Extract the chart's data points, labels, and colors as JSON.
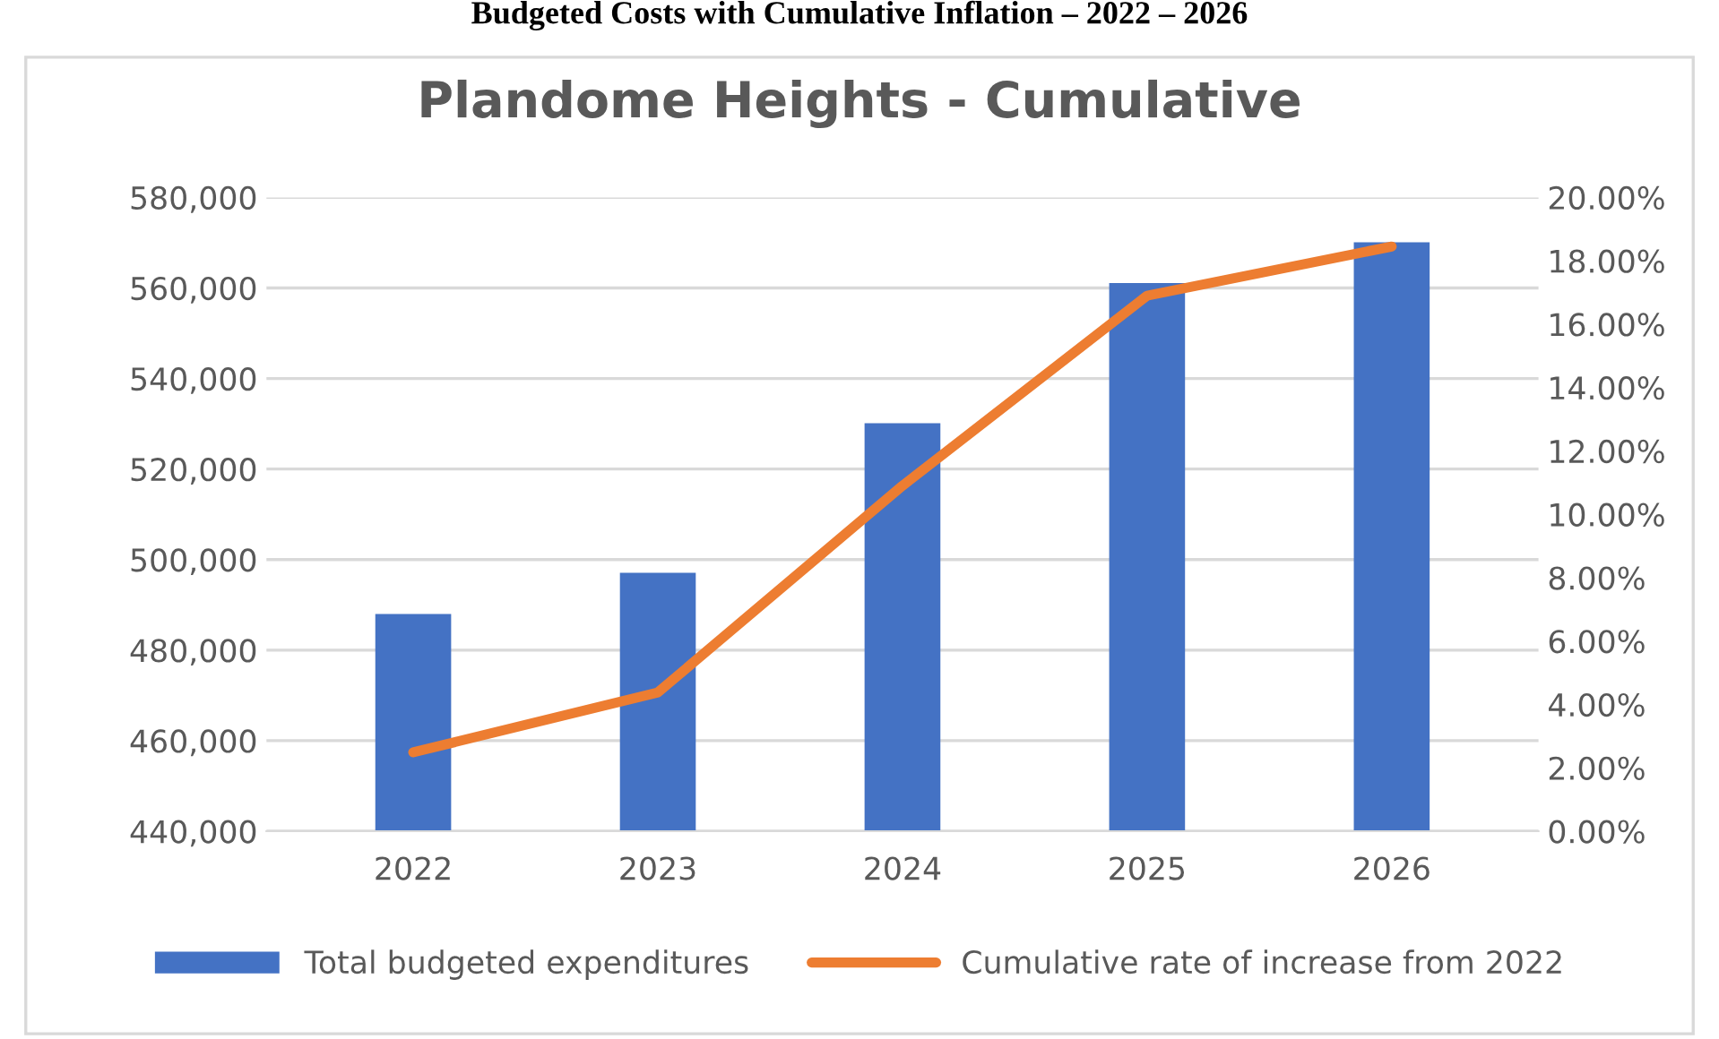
{
  "chart_data": {
    "type": "bar",
    "title": "Plandome Heights - Cumulative",
    "annotations": [
      "Budgeted Costs with Cumulative Inflation – 2022 – 2026"
    ],
    "categories": [
      "2022",
      "2023",
      "2024",
      "2025",
      "2026"
    ],
    "series": [
      {
        "name": "Total budgeted expenditures",
        "color": "#4472c4",
        "values": [
          488000,
          497100,
          530100,
          561100,
          570100
        ]
      },
      {
        "name": "Cumulative rate of increase from 2022",
        "type": "line",
        "axis": "y2",
        "color": "#ed7d31",
        "values": [
          2.49,
          4.38,
          10.9,
          16.9,
          18.45
        ]
      }
    ],
    "ylim": [
      440000,
      580000
    ],
    "yticks": [
      {
        "value": 440000,
        "label": "440,000"
      },
      {
        "value": 460000,
        "label": "460,000"
      },
      {
        "value": 480000,
        "label": "480,000"
      },
      {
        "value": 500000,
        "label": "500,000"
      },
      {
        "value": 520000,
        "label": "520,000"
      },
      {
        "value": 540000,
        "label": "540,000"
      },
      {
        "value": 560000,
        "label": "560,000"
      },
      {
        "value": 580000,
        "label": "580,000"
      }
    ],
    "y2lim": [
      0,
      20
    ],
    "y2ticks": [
      {
        "value": 0,
        "label": "0.00%"
      },
      {
        "value": 2,
        "label": "2.00%"
      },
      {
        "value": 4,
        "label": "4.00%"
      },
      {
        "value": 6,
        "label": "6.00%"
      },
      {
        "value": 8,
        "label": "8.00%"
      },
      {
        "value": 10,
        "label": "10.00%"
      },
      {
        "value": 12,
        "label": "12.00%"
      },
      {
        "value": 14,
        "label": "14.00%"
      },
      {
        "value": 16,
        "label": "16.00%"
      },
      {
        "value": 18,
        "label": "18.00%"
      },
      {
        "value": 20,
        "label": "20.00%"
      }
    ],
    "grid": "y",
    "legend": "bottom",
    "marker": "none",
    "line_style": "solid"
  }
}
